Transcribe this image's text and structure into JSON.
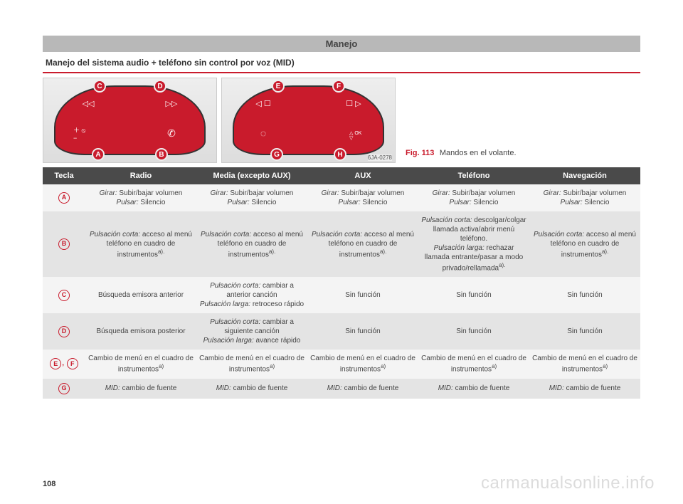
{
  "header": {
    "title": "Manejo"
  },
  "section": {
    "title": "Manejo del sistema audio + teléfono sin control por voz (MID)"
  },
  "figure": {
    "label": "Fig. 113",
    "caption": "Mandos en el volante.",
    "code": "6JA-0278",
    "left_callouts": [
      "A",
      "B",
      "C",
      "D"
    ],
    "right_callouts": [
      "E",
      "F",
      "G",
      "H"
    ],
    "left_icons": {
      "top_left": "◁◁",
      "top_right": "▷▷",
      "bot_left": "＋ ⦸ −",
      "bot_right": "✆"
    },
    "right_icons": {
      "top_left": "◁ ☐",
      "top_right": "☐ ▷",
      "bot_left": "◌",
      "bot_right": "△ OK ▽"
    }
  },
  "table": {
    "headers": [
      "Tecla",
      "Radio",
      "Media (excepto AUX)",
      "AUX",
      "Teléfono",
      "Navegación"
    ],
    "rows": [
      {
        "tecla": [
          "A"
        ],
        "cells": [
          "Girar: Subir/bajar volumen\nPulsar: Silencio",
          "Girar: Subir/bajar volumen\nPulsar: Silencio",
          "Girar: Subir/bajar volumen\nPulsar: Silencio",
          "Girar: Subir/bajar volumen\nPulsar: Silencio",
          "Girar: Subir/bajar volumen\nPulsar: Silencio"
        ]
      },
      {
        "tecla": [
          "B"
        ],
        "cells": [
          "Pulsación corta: acceso al menú teléfono en cuadro de instrumentosa).",
          "Pulsación corta: acceso al menú teléfono en cuadro de instrumentosa).",
          "Pulsación corta: acceso al menú teléfono en cuadro de instrumentosa).",
          "Pulsación corta: descolgar/colgar llamada activa/abrir menú teléfono.\nPulsación larga: rechazar llamada entrante/pasar a modo privado/rellamadaa).",
          "Pulsación corta: acceso al menú teléfono en cuadro de instrumentosa)."
        ]
      },
      {
        "tecla": [
          "C"
        ],
        "cells": [
          "Búsqueda emisora anterior",
          "Pulsación corta: cambiar a anterior canción\nPulsación larga: retroceso rápido",
          "Sin función",
          "Sin función",
          "Sin función"
        ]
      },
      {
        "tecla": [
          "D"
        ],
        "cells": [
          "Búsqueda emisora posterior",
          "Pulsación corta: cambiar a siguiente canción\nPulsación larga: avance rápido",
          "Sin función",
          "Sin función",
          "Sin función"
        ]
      },
      {
        "tecla": [
          "E",
          "F"
        ],
        "cells": [
          "Cambio de menú en el cuadro de instrumentosa)",
          "Cambio de menú en el cuadro de instrumentosa)",
          "Cambio de menú en el cuadro de instrumentosa)",
          "Cambio de menú en el cuadro de instrumentosa)",
          "Cambio de menú en el cuadro de instrumentosa)"
        ]
      },
      {
        "tecla": [
          "G"
        ],
        "cells": [
          "MID: cambio de fuente",
          "MID: cambio de fuente",
          "MID: cambio de fuente",
          "MID: cambio de fuente",
          "MID: cambio de fuente"
        ]
      }
    ]
  },
  "pageNumber": "108",
  "watermark": "carmanualsonline.info",
  "colors": {
    "accent": "#c91b2c",
    "header_bg": "#b8b8b8",
    "th_bg": "#4a4a4a",
    "row_odd": "#f4f4f4",
    "row_even": "#e4e4e4"
  }
}
